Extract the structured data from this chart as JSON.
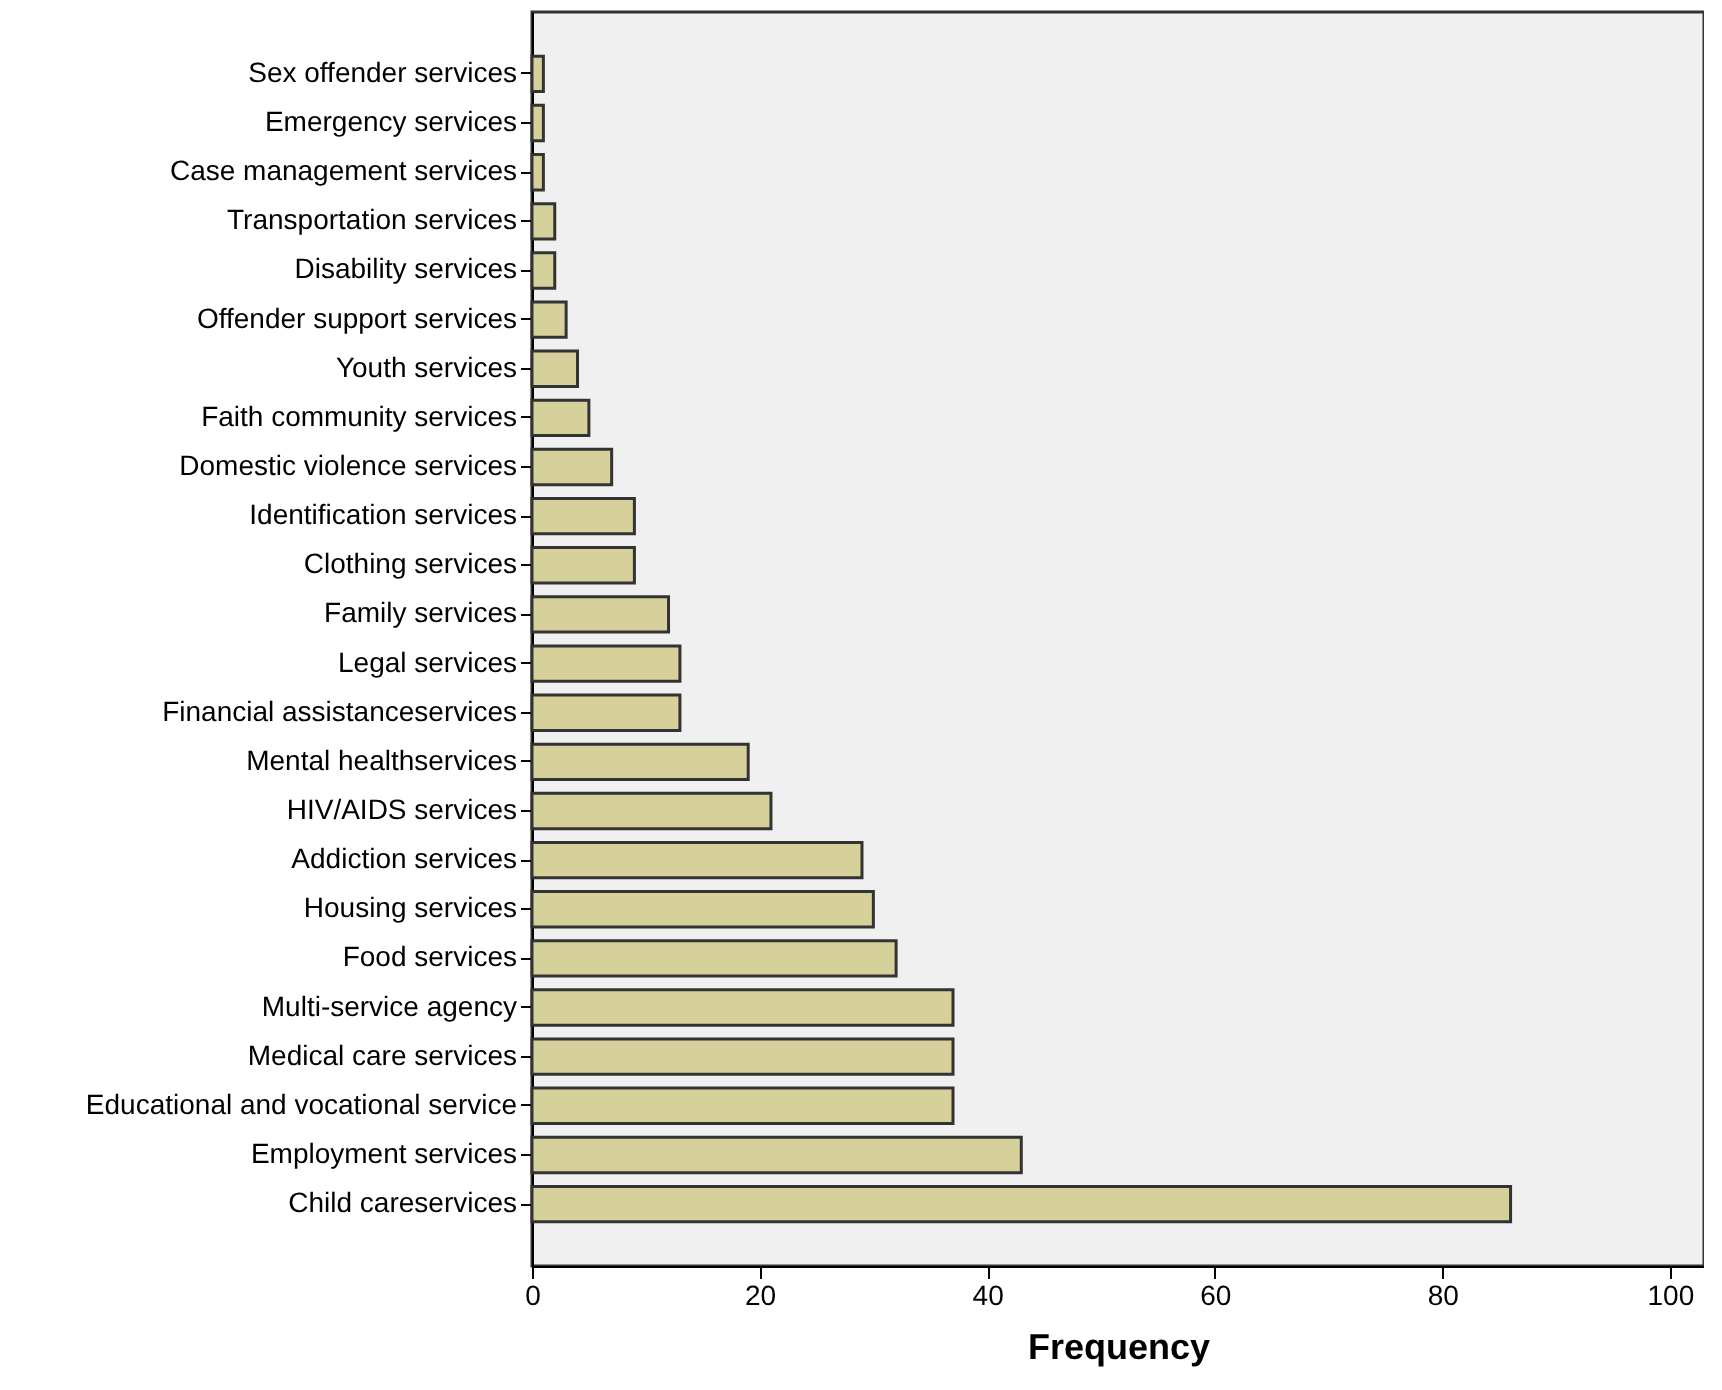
{
  "chart_data": {
    "type": "bar",
    "orientation": "horizontal",
    "xlabel": "Frequency",
    "categories": [
      "Sex offender services",
      "Emergency services",
      "Case management services",
      "Transportation services",
      "Disability services",
      "Offender support services",
      "Youth services",
      "Faith community services",
      "Domestic violence services",
      "Identification services",
      "Clothing services",
      "Family services",
      "Legal services",
      "Financial assistanceservices",
      "Mental healthservices",
      "HIV/AIDS services",
      "Addiction services",
      "Housing services",
      "Food services",
      "Multi-service agency",
      "Medical care services",
      "Educational and vocational service",
      "Employment services",
      "Child careservices"
    ],
    "values": [
      1,
      1,
      1,
      2,
      2,
      3,
      4,
      5,
      7,
      9,
      9,
      12,
      13,
      13,
      19,
      21,
      29,
      30,
      32,
      37,
      37,
      37,
      43,
      86
    ],
    "color": "#d6d19a",
    "xlim": [
      0,
      103
    ],
    "xticks": [
      0,
      20,
      40,
      60,
      80,
      100
    ],
    "grid": false
  }
}
